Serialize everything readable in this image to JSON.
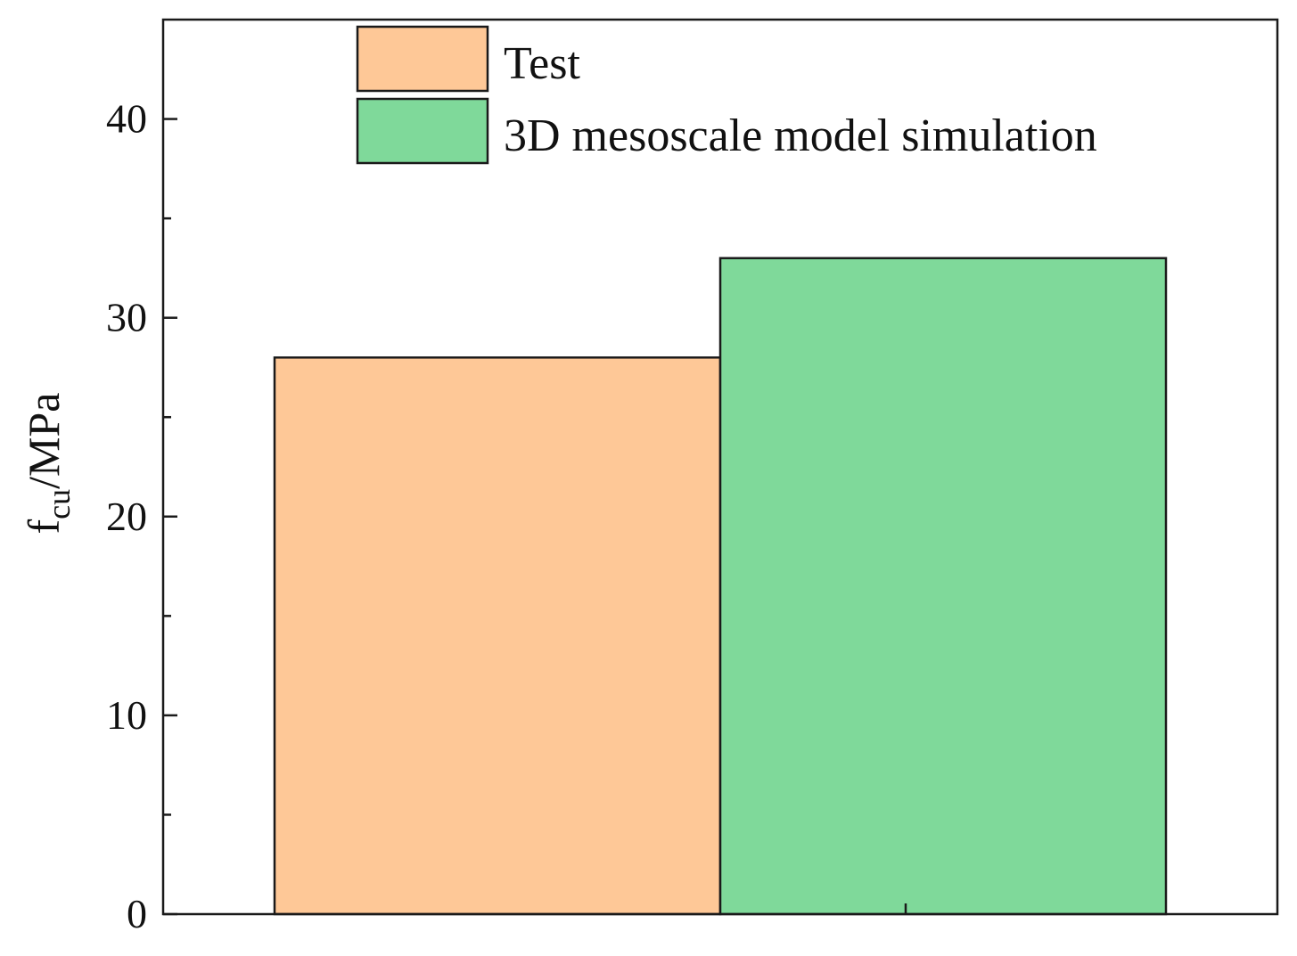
{
  "chart_data": {
    "type": "bar",
    "ylabel": {
      "main": "f",
      "subscript": "cu",
      "unit": "/MPa"
    },
    "ylim": [
      0,
      45
    ],
    "yticks": [
      0,
      10,
      20,
      30,
      40
    ],
    "y_minor_ticks": [
      5,
      15,
      25,
      35
    ],
    "xlim": [
      0,
      1
    ],
    "x_ticks": [
      0.5
    ],
    "grid": false,
    "legend_position": "top-right",
    "series": [
      {
        "name": "Test",
        "values": [
          28
        ],
        "color": "#FEC897"
      },
      {
        "name": "3D mesoscale model simulation",
        "values": [
          33
        ],
        "color": "#7FD99A"
      }
    ],
    "bar_spans": [
      {
        "series": "Test",
        "x_start": 0.1,
        "x_end": 0.5
      },
      {
        "series": "3D mesoscale model simulation",
        "x_start": 0.5,
        "x_end": 0.9
      }
    ]
  }
}
